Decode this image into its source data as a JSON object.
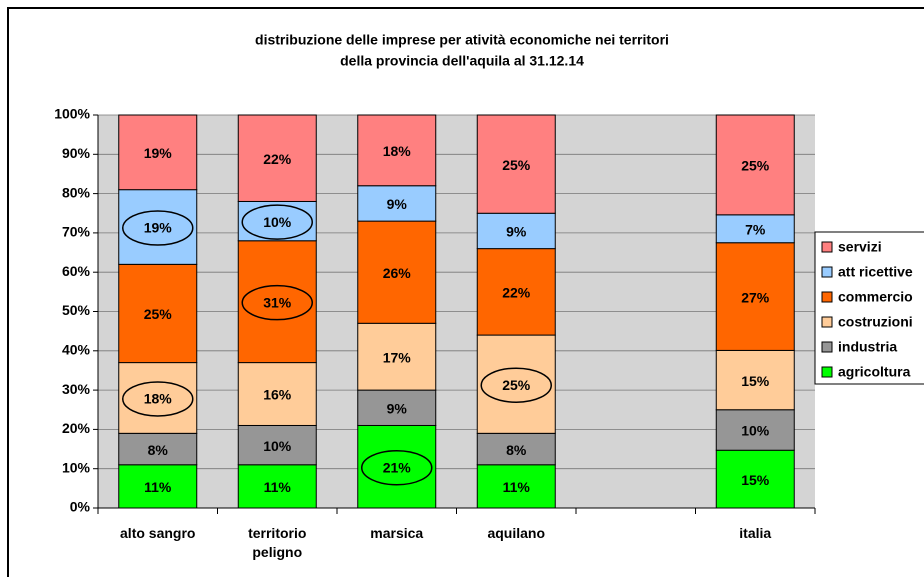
{
  "chart_data": {
    "type": "stacked_bar",
    "title": [
      "distribuzione delle imprese per atività economiche nei territori",
      "della provincia dell'aquila al 31.12.14"
    ],
    "categories": [
      "alto sangro",
      "territorio peligno",
      "marsica",
      "aquilano",
      null,
      "italia"
    ],
    "ylim": [
      0,
      100
    ],
    "yticks": [
      {
        "value": 0,
        "label": "0%"
      },
      {
        "value": 10,
        "label": "10%"
      },
      {
        "value": 20,
        "label": "20%"
      },
      {
        "value": 30,
        "label": "30%"
      },
      {
        "value": 40,
        "label": "40%"
      },
      {
        "value": 50,
        "label": "50%"
      },
      {
        "value": 60,
        "label": "60%"
      },
      {
        "value": 70,
        "label": "70%"
      },
      {
        "value": 80,
        "label": "80%"
      },
      {
        "value": 90,
        "label": "90%"
      },
      {
        "value": 100,
        "label": "100%"
      }
    ],
    "grid": true,
    "legend": "right",
    "series": [
      {
        "name": "agricoltura",
        "color": "#00ff00",
        "values": [
          11,
          11,
          21,
          11,
          null,
          14.7
        ],
        "value_labels": [
          "11%",
          "11%",
          "21%",
          "11%",
          null,
          "15%"
        ]
      },
      {
        "name": "industria",
        "color": "#969696",
        "values": [
          8,
          10,
          9,
          8,
          null,
          10.3
        ],
        "value_labels": [
          "8%",
          "10%",
          "9%",
          "8%",
          null,
          "10%"
        ]
      },
      {
        "name": "costruzioni",
        "color": "#ffcc99",
        "values": [
          18,
          16,
          17,
          25,
          null,
          15.1
        ],
        "value_labels": [
          "18%",
          "16%",
          "17%",
          "25%",
          null,
          "15%"
        ]
      },
      {
        "name": "commercio",
        "color": "#ff6600",
        "values": [
          25,
          31,
          26,
          22,
          null,
          27.4
        ],
        "value_labels": [
          "25%",
          "31%",
          "26%",
          "22%",
          null,
          "27%"
        ]
      },
      {
        "name": "att ricettive",
        "color": "#99ccff",
        "values": [
          19,
          10,
          9,
          9,
          null,
          7.1
        ],
        "value_labels": [
          "19%",
          "10%",
          "9%",
          "9%",
          null,
          "7%"
        ]
      },
      {
        "name": "servizi",
        "color": "#ff8080",
        "values": [
          19,
          22,
          18,
          25,
          null,
          25.4
        ],
        "value_labels": [
          "19%",
          "22%",
          "18%",
          "25%",
          null,
          "25%"
        ]
      }
    ]
  }
}
